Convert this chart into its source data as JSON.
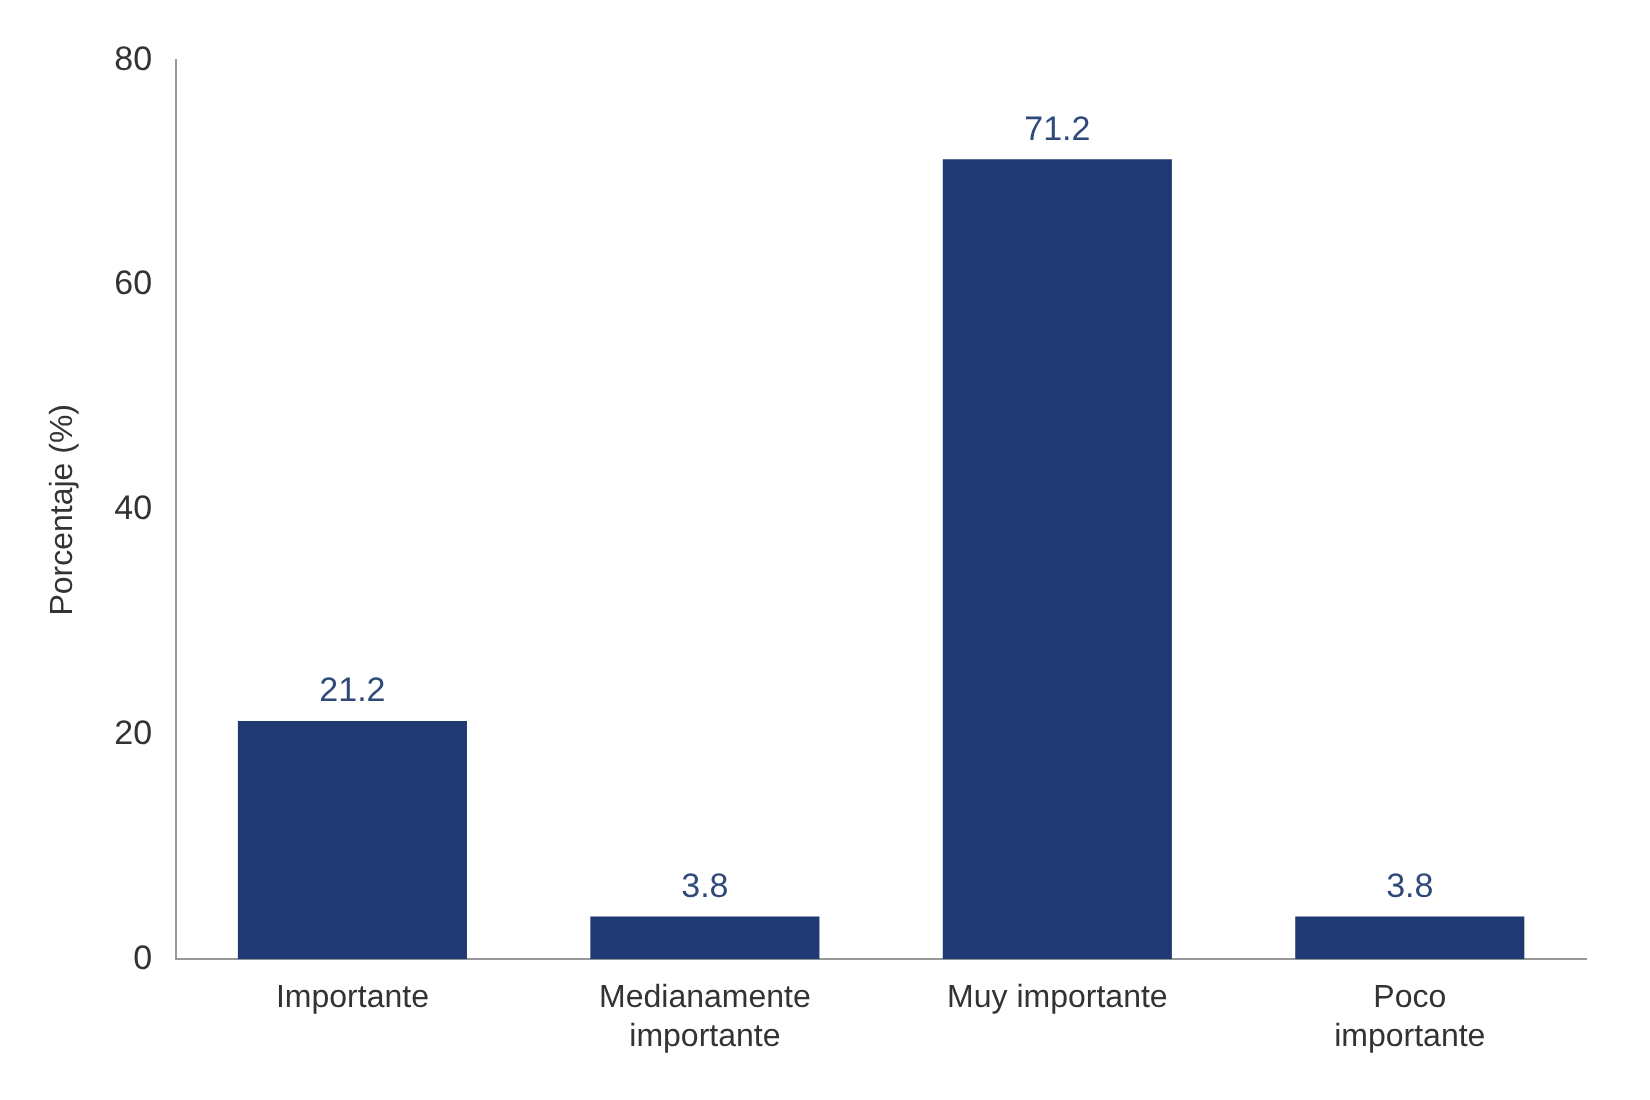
{
  "chart_data": {
    "type": "bar",
    "ylabel": "Porcentaje (%)",
    "categories": [
      "Importante",
      "Medianamente importante",
      "Muy importante",
      "Poco importante"
    ],
    "values": [
      21.2,
      3.8,
      71.2,
      3.8
    ],
    "color": "#1f3a73",
    "ylim": [
      0,
      80
    ],
    "yticks": [
      0,
      20,
      40,
      60,
      80
    ],
    "grid": false,
    "data_labels": true,
    "legend": false
  }
}
